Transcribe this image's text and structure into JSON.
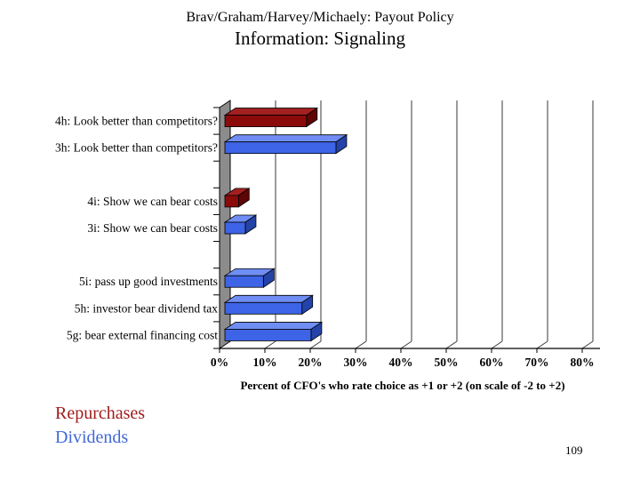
{
  "slide": {
    "title_line1": "Brav/Graham/Harvey/Michaely: Payout Policy",
    "title_line2": "Information: Signaling",
    "page_number": "109"
  },
  "legend": {
    "items": [
      {
        "label": "Repurchases",
        "color": "#9E1B1B"
      },
      {
        "label": "Dividends",
        "color": "#4168D8"
      }
    ]
  },
  "chart_data": {
    "type": "bar",
    "orientation": "horizontal",
    "style": "3d",
    "xlabel": "Percent of CFO's who rate choice as +1 or +2 (on scale of -2  to +2)",
    "xlim": [
      0,
      80
    ],
    "x_ticks": [
      "0%",
      "10%",
      "20%",
      "30%",
      "40%",
      "50%",
      "60%",
      "70%",
      "80%"
    ],
    "grid": true,
    "legend_position": "bottom-left",
    "rows": [
      {
        "label": "4h: Look better than competitors?",
        "series": "Repurchases",
        "value": 18
      },
      {
        "label": "3h: Look better than competitors?",
        "series": "Dividends",
        "value": 24.5
      },
      {
        "label": "",
        "series": null,
        "value": null
      },
      {
        "label": "4i: Show we can bear costs",
        "series": "Repurchases",
        "value": 3
      },
      {
        "label": "3i: Show we can bear costs",
        "series": "Dividends",
        "value": 4.5
      },
      {
        "label": "",
        "series": null,
        "value": null
      },
      {
        "label": "5i: pass up good investments",
        "series": "Dividends",
        "value": 8.5
      },
      {
        "label": "5h: investor bear dividend tax",
        "series": "Dividends",
        "value": 17
      },
      {
        "label": "5g: bear external financing cost",
        "series": "Dividends",
        "value": 19
      }
    ],
    "series": [
      {
        "name": "Repurchases",
        "front": "#8B0B0B",
        "top": "#A32020",
        "side": "#5E0505"
      },
      {
        "name": "Dividends",
        "front": "#3D64E6",
        "top": "#6F8DF2",
        "side": "#2443A8"
      }
    ],
    "wall_color": "#8C8C8C",
    "gridline_color": "#3a3a3a",
    "axis_color": "#000000"
  }
}
